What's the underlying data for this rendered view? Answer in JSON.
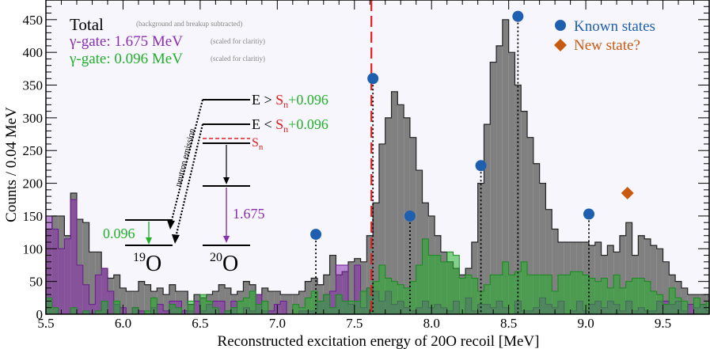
{
  "chart_data": {
    "type": "histogram",
    "title": "",
    "xlabel": "Reconstructed excitation energy of 20O recoil [MeV]",
    "ylabel": "Counts / 0.04 MeV",
    "xlim": [
      5.5,
      9.8
    ],
    "ylim": [
      0,
      480
    ],
    "bin_width": 0.04,
    "x_ticks": [
      5.5,
      6.0,
      6.5,
      7.0,
      7.5,
      8.0,
      8.5,
      9.0,
      9.5
    ],
    "x_tick_labels": [
      "5.5",
      "6.0",
      "6.5",
      "7.0",
      "7.5",
      "8.0",
      "8.5",
      "9.0",
      "9.5"
    ],
    "y_ticks": [
      0,
      50,
      100,
      150,
      200,
      250,
      300,
      350,
      400,
      450
    ],
    "y_tick_labels": [
      "0",
      "50",
      "100",
      "150",
      "200",
      "250",
      "300",
      "350",
      "400",
      "450"
    ],
    "series": [
      {
        "name": "Total",
        "note": "(background and breakup subtracted)",
        "color": "#808080",
        "values": [
          130,
          150,
          150,
          120,
          185,
          145,
          140,
          95,
          95,
          70,
          55,
          60,
          40,
          35,
          35,
          50,
          45,
          35,
          40,
          30,
          45,
          35,
          35,
          15,
          30,
          25,
          30,
          35,
          45,
          40,
          30,
          35,
          50,
          45,
          30,
          40,
          35,
          35,
          30,
          30,
          30,
          35,
          50,
          55,
          45,
          60,
          90,
          60,
          65,
          80,
          85,
          80,
          120,
          170,
          260,
          300,
          340,
          320,
          300,
          270,
          220,
          170,
          150,
          120,
          95,
          80,
          70,
          60,
          70,
          110,
          200,
          290,
          385,
          410,
          450,
          400,
          350,
          310,
          270,
          230,
          200,
          160,
          130,
          110,
          110,
          110,
          110,
          110,
          105,
          110,
          90,
          105,
          95,
          120,
          140,
          90,
          120,
          115,
          105,
          100,
          80,
          60,
          50,
          40,
          30,
          30,
          30,
          30
        ]
      },
      {
        "name": "γ-gate: 1.675 MeV",
        "note": "(scaled for claritiy)",
        "color": "#8a2eb0",
        "values": [
          150,
          130,
          100,
          115,
          175,
          75,
          45,
          15,
          60,
          70,
          35,
          15,
          10,
          0,
          10,
          5,
          0,
          10,
          15,
          5,
          20,
          20,
          5,
          5,
          20,
          5,
          15,
          20,
          20,
          5,
          20,
          0,
          10,
          5,
          30,
          5,
          5,
          15,
          20,
          0,
          0,
          5,
          5,
          5,
          20,
          30,
          35,
          75,
          75,
          15,
          75,
          10,
          40,
          35,
          20,
          35,
          15,
          20,
          10,
          5,
          10,
          20,
          10,
          15,
          10,
          5,
          20,
          0,
          25,
          5,
          15,
          15,
          10,
          20,
          10,
          0,
          20,
          5,
          5,
          10,
          25,
          15,
          10,
          20,
          0,
          5,
          20,
          5,
          15,
          20,
          10,
          20,
          15,
          5,
          20,
          5,
          10,
          5,
          5,
          20,
          20,
          15,
          20,
          5,
          15,
          10,
          15,
          5
        ]
      },
      {
        "name": "γ-gate: 0.096 MeV",
        "note": "(scaled for claritiy)",
        "color": "#22b02a",
        "values": [
          25,
          10,
          0,
          0,
          10,
          0,
          5,
          0,
          5,
          20,
          0,
          20,
          0,
          0,
          10,
          0,
          5,
          25,
          0,
          0,
          15,
          10,
          0,
          20,
          0,
          30,
          20,
          10,
          0,
          5,
          10,
          20,
          25,
          35,
          15,
          20,
          0,
          0,
          0,
          0,
          15,
          10,
          25,
          35,
          20,
          30,
          10,
          30,
          20,
          20,
          20,
          35,
          40,
          50,
          75,
          55,
          50,
          45,
          40,
          50,
          75,
          115,
          90,
          90,
          80,
          95,
          90,
          55,
          60,
          55,
          35,
          45,
          60,
          60,
          80,
          60,
          65,
          80,
          60,
          60,
          60,
          60,
          35,
          60,
          60,
          65,
          65,
          60,
          55,
          50,
          55,
          40,
          60,
          40,
          50,
          55,
          55,
          50,
          35,
          30,
          15,
          40,
          25,
          20,
          0,
          25,
          15,
          20
        ]
      }
    ],
    "vertical_line": {
      "x": 7.61,
      "style": "red dashed"
    },
    "known_states": {
      "label": "Known states",
      "color": "#1f5fb0",
      "points": [
        {
          "x": 7.25,
          "y": 122
        },
        {
          "x": 7.62,
          "y": 360
        },
        {
          "x": 7.86,
          "y": 150
        },
        {
          "x": 8.32,
          "y": 227
        },
        {
          "x": 8.56,
          "y": 455
        },
        {
          "x": 9.02,
          "y": 153
        }
      ]
    },
    "new_state": {
      "label": "New state?",
      "color": "#c85a10",
      "points": [
        {
          "x": 9.27,
          "y": 185
        }
      ]
    },
    "level_scheme": {
      "neutron_emission_label": "neutron emission",
      "level_upper_prefix": "E > ",
      "level_lower_prefix": "E < ",
      "sn_symbol": "S",
      "sn_subscript": "n",
      "plus_value": "+0.096",
      "sn_label_main": "S",
      "sn_label_sub": "n",
      "gamma_19o": "0.096",
      "gamma_20o": "1.675",
      "nucleus_19_mass": "19",
      "nucleus_19_sym": "O",
      "nucleus_20_mass": "20",
      "nucleus_20_sym": "O"
    }
  }
}
